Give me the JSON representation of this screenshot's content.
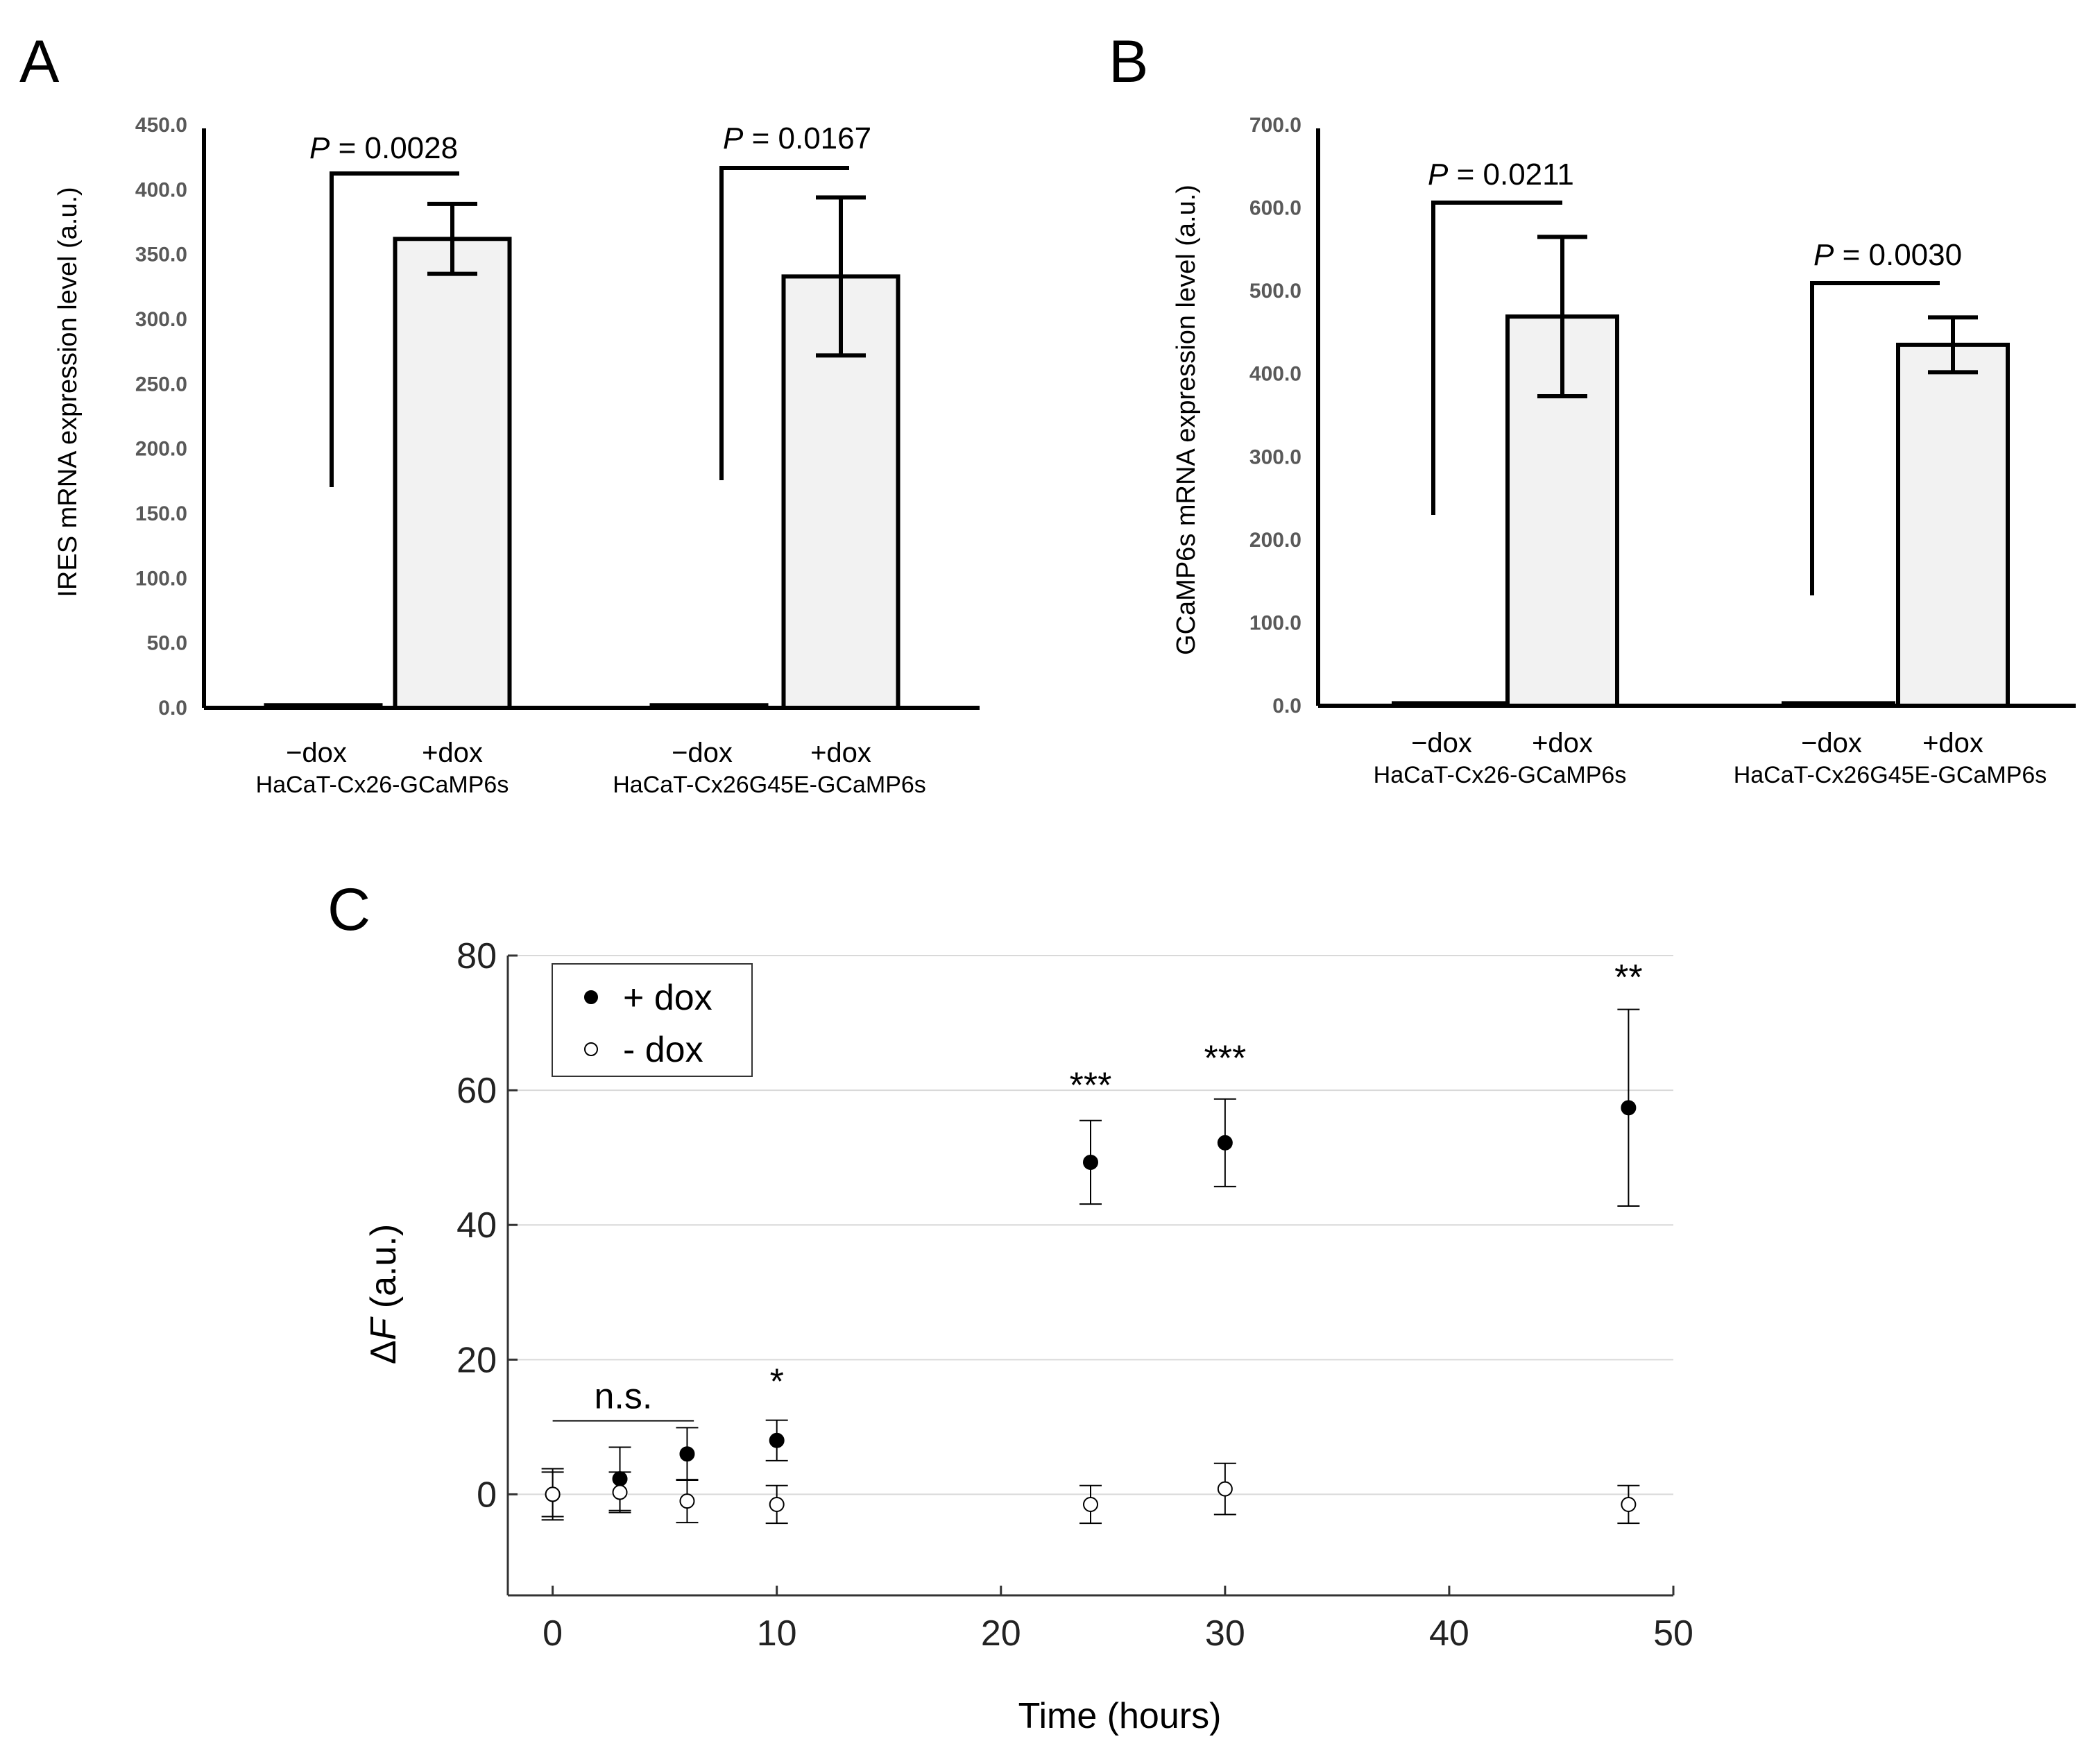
{
  "chart_data": [
    {
      "panel": "A",
      "type": "bar",
      "ylabel": "IRES mRNA expression level (a.u.)",
      "ylim": [
        0,
        450
      ],
      "yticks": [
        "0.0",
        "50.0",
        "100.0",
        "150.0",
        "200.0",
        "250.0",
        "300.0",
        "350.0",
        "400.0",
        "450.0"
      ],
      "groups": [
        {
          "name": "HaCaT-Cx26-GCaMP6s",
          "bars": [
            {
              "label": "−dox",
              "value": 2,
              "err": 0
            },
            {
              "label": "+dox",
              "value": 362,
              "err": 27
            }
          ],
          "pvalue": {
            "prefix": "P",
            "text": " = 0.0028"
          }
        },
        {
          "name": "HaCaT-Cx26G45E-GCaMP6s",
          "bars": [
            {
              "label": "−dox",
              "value": 2,
              "err": 0
            },
            {
              "label": "+dox",
              "value": 333,
              "err": 61
            }
          ],
          "pvalue": {
            "prefix": "P",
            "text": " = 0.0167"
          }
        }
      ]
    },
    {
      "panel": "B",
      "type": "bar",
      "ylabel": "GCaMP6s mRNA expression level (a.u.)",
      "ylim": [
        0,
        700
      ],
      "yticks": [
        "0.0",
        "100.0",
        "200.0",
        "300.0",
        "400.0",
        "500.0",
        "600.0",
        "700.0"
      ],
      "groups": [
        {
          "name": "HaCaT-Cx26-GCaMP6s",
          "bars": [
            {
              "label": "−dox",
              "value": 3,
              "err": 0
            },
            {
              "label": "+dox",
              "value": 469,
              "err": 96
            }
          ],
          "pvalue": {
            "prefix": "P",
            "text": " = 0.0211"
          }
        },
        {
          "name": "HaCaT-Cx26G45E-GCaMP6s",
          "bars": [
            {
              "label": "−dox",
              "value": 3,
              "err": 0
            },
            {
              "label": "+dox",
              "value": 435,
              "err": 33
            }
          ],
          "pvalue": {
            "prefix": "P",
            "text": " = 0.0030"
          }
        }
      ]
    },
    {
      "panel": "C",
      "type": "scatter",
      "xlabel": "Time (hours)",
      "ylabel_symbol": "Δ",
      "ylabel_var": "F",
      "ylabel_unit": " (a.u.)",
      "xlim": [
        -2,
        50
      ],
      "ylim": [
        -15,
        80
      ],
      "xticks": [
        0,
        10,
        20,
        30,
        40,
        50
      ],
      "yticks": [
        0,
        20,
        40,
        60,
        80
      ],
      "grid": true,
      "legend_position": "top-left",
      "series": [
        {
          "name": "+ dox",
          "marker": "filled-circle",
          "x": [
            0,
            3,
            6,
            10,
            24,
            30,
            48
          ],
          "y": [
            0,
            2.3,
            6,
            8,
            49.3,
            52.2,
            57.4
          ],
          "err": [
            3.8,
            4.7,
            3.9,
            3.0,
            6.2,
            6.5,
            14.6
          ]
        },
        {
          "name": "- dox",
          "marker": "open-circle",
          "x": [
            0,
            3,
            6,
            10,
            24,
            30,
            48
          ],
          "y": [
            0,
            0.3,
            -1,
            -1.5,
            -1.5,
            0.8,
            -1.5
          ],
          "err": [
            3.3,
            3.0,
            3.2,
            2.8,
            2.8,
            3.8,
            2.8
          ]
        }
      ],
      "annotations": [
        {
          "text": "n.s.",
          "x_from": 0,
          "x_to": 6.3,
          "y": 14
        },
        {
          "text": "*",
          "x": 10,
          "y": 17
        },
        {
          "text": "***",
          "x": 24,
          "y": 61
        },
        {
          "text": "***",
          "x": 30,
          "y": 65
        },
        {
          "text": "**",
          "x": 48,
          "y": 77
        }
      ]
    }
  ]
}
